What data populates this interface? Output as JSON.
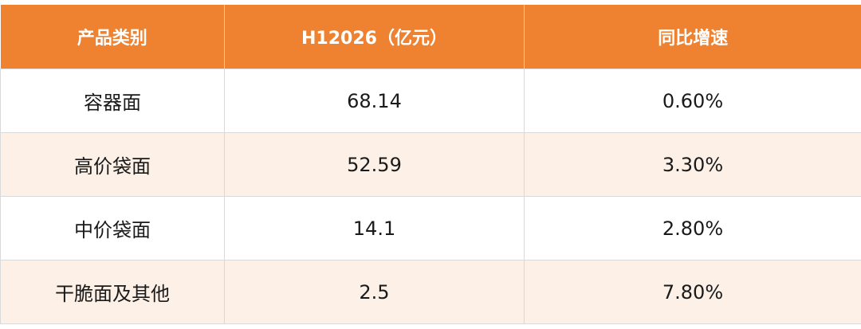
{
  "table": {
    "header": [
      "产品类别",
      "H12026（亿元）",
      "同比增速"
    ],
    "rows": [
      [
        "容器面",
        "68.14",
        "0.60%"
      ],
      [
        "高价袋面",
        "52.59",
        "3.30%"
      ],
      [
        "中价袋面",
        "14.1",
        "2.80%"
      ],
      [
        "干脆面及其他",
        "2.5",
        "7.80%"
      ]
    ]
  }
}
